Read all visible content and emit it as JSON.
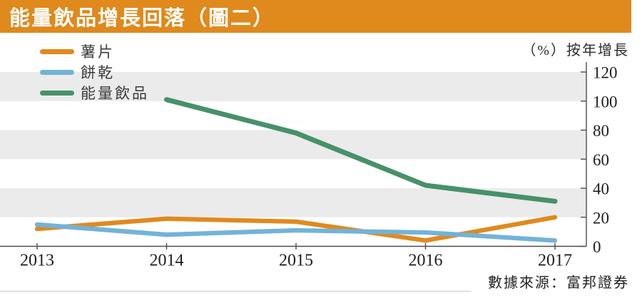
{
  "header": {
    "title": "能量飲品增長回落（圖二）"
  },
  "colors": {
    "header_bg": "#E0891C",
    "band": "#EBEBEB",
    "axis": "#4d4d4d"
  },
  "source_note": "數據來源：富邦證券",
  "chart_data": {
    "type": "line",
    "x": [
      "2013",
      "2014",
      "2015",
      "2016",
      "2017"
    ],
    "series": [
      {
        "name": "薯片",
        "color": "#DF8A1E",
        "values": [
          12,
          19,
          17,
          4,
          20
        ]
      },
      {
        "name": "餅乾",
        "color": "#72B3D8",
        "values": [
          15,
          8,
          11,
          9.5,
          4
        ]
      },
      {
        "name": "能量飲品",
        "color": "#46916A",
        "values": [
          null,
          101,
          78,
          42,
          31
        ]
      }
    ],
    "title": "能量飲品增長回落（圖二）",
    "unit_label": "（%）按年增長",
    "xlabel": "",
    "ylabel": "（%）按年增長",
    "ylim": [
      0,
      128
    ],
    "yticks": [
      0,
      20,
      40,
      60,
      80,
      100,
      120
    ],
    "gray_bands": [
      [
        20,
        40
      ],
      [
        60,
        80
      ],
      [
        100,
        120
      ]
    ],
    "legend_position": "top-left",
    "grid": "horizontal-bands",
    "y_axis_side": "right"
  }
}
